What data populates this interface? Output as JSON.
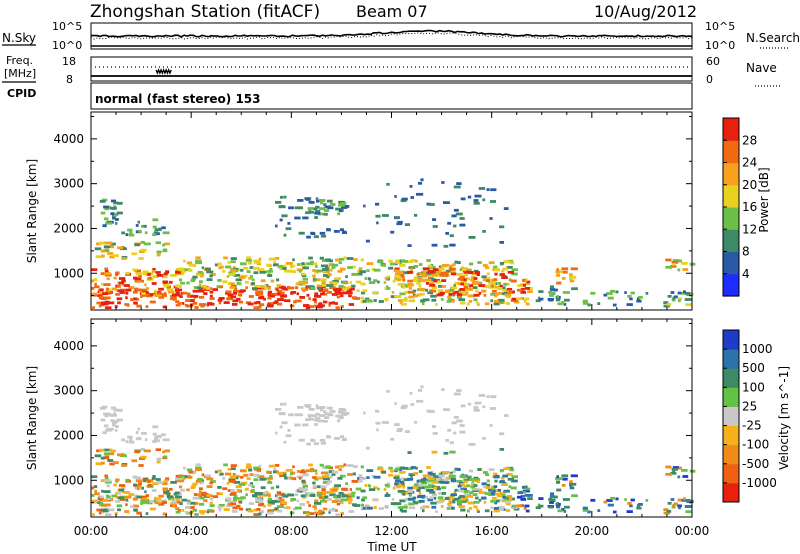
{
  "header": {
    "station": "Zhongshan Station (fitACF)",
    "beam": "Beam 07",
    "date": "10/Aug/2012"
  },
  "sky_panel": {
    "left_label": "N.Sky",
    "right_label": "N.Search",
    "left_ticks": [
      "10^5",
      "10^0"
    ],
    "right_ticks": [
      "10^5",
      "10^0"
    ]
  },
  "freq_panel": {
    "left_label_1": "Freq.",
    "left_label_2": "[MHz]",
    "left_label_3": "CPID",
    "right_label": "Nave",
    "left_ticks": [
      "18",
      "8"
    ],
    "right_ticks": [
      "60",
      "0"
    ]
  },
  "mode_text": "normal (fast stereo) 153",
  "axes": {
    "ylabel": "Slant Range [km]",
    "xlabel": "Time UT",
    "y_ticks": [
      "1000",
      "2000",
      "3000",
      "4000"
    ],
    "x_ticks": [
      "00:00",
      "04:00",
      "08:00",
      "12:00",
      "16:00",
      "20:00",
      "00:00"
    ]
  },
  "chart_data": [
    {
      "type": "heatmap",
      "quantity": "Power",
      "colorbar_label": "Power [dB]",
      "x_range_hours": [
        0,
        24
      ],
      "ylim": [
        180,
        4600
      ],
      "colorbar_ticks": [
        "4",
        "8",
        "12",
        "16",
        "20",
        "24",
        "28"
      ],
      "colorbar_colors": [
        "#1f2cff",
        "#2a5aa6",
        "#3e8a67",
        "#6cc04a",
        "#e8d21f",
        "#f6a21a",
        "#f06a10",
        "#e8200e"
      ]
    },
    {
      "type": "heatmap",
      "quantity": "Velocity",
      "colorbar_label": "Velocity [m s^-1]",
      "x_range_hours": [
        0,
        24
      ],
      "ylim": [
        180,
        4600
      ],
      "colorbar_ticks": [
        "1000",
        "500",
        "100",
        "25",
        "-25",
        "-100",
        "-500",
        "-1000"
      ],
      "colorbar_colors": [
        "#1f3cc8",
        "#2d72a8",
        "#3e8a67",
        "#62c244",
        "#c8c8c8",
        "#f6b01a",
        "#f08a18",
        "#f06010",
        "#e8200e"
      ]
    }
  ]
}
